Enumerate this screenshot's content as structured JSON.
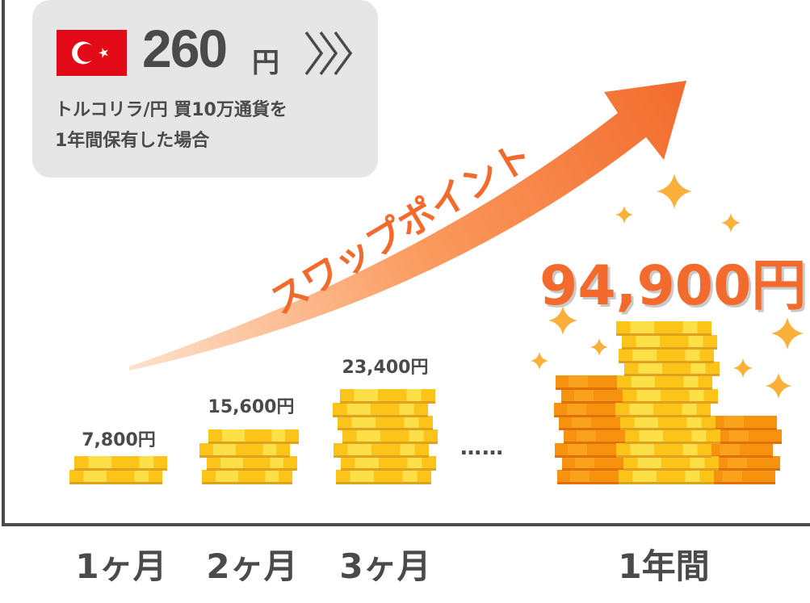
{
  "info_box": {
    "flag_icon": "turkey-flag-icon",
    "swap_rate": "260",
    "swap_unit": "円",
    "line1": "トルコリラ/円 買10万通貨を",
    "line2": "1年間保有した場合"
  },
  "arrow_label": "スワップポイント",
  "stacks": [
    {
      "period": "1ヶ月",
      "value": "7,800円"
    },
    {
      "period": "2ヶ月",
      "value": "15,600円"
    },
    {
      "period": "3ヶ月",
      "value": "23,400円"
    },
    {
      "period": "1年間",
      "value": "94,900円"
    }
  ],
  "ellipsis": "……",
  "colors": {
    "accent": "#f26b2d",
    "text": "#4a4a4a",
    "gold": "#fcc419",
    "orange_coin": "#f7920f",
    "panel": "#e6e6e6",
    "sparkle": "#fbb03b"
  }
}
